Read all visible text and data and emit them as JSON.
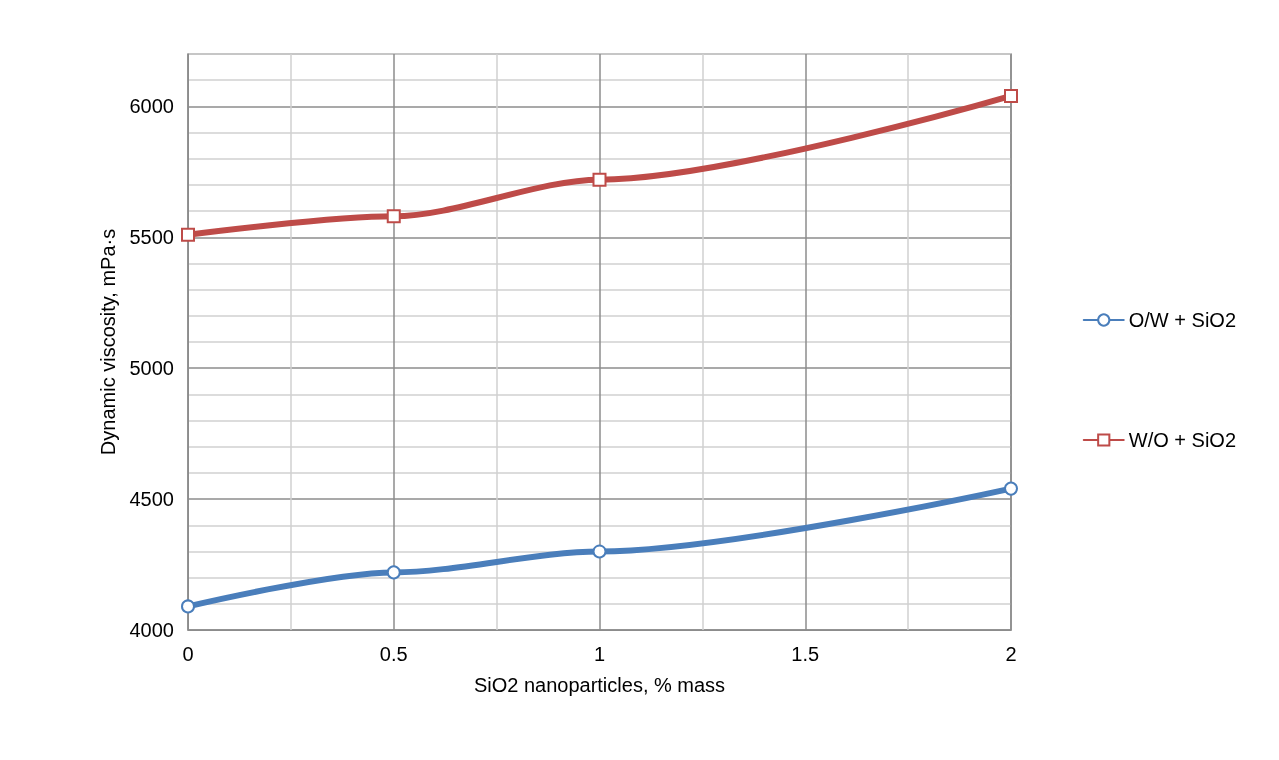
{
  "chart_data": {
    "type": "line",
    "xlabel": "SiO2 nanoparticles, % mass",
    "ylabel": "Dynamic viscosity, mPa·s",
    "x": [
      0,
      0.5,
      1,
      2
    ],
    "series": [
      {
        "name": "O/W + SiO2",
        "color": "#4a7ebb",
        "marker": "circle",
        "values": [
          4090,
          4220,
          4300,
          4540
        ]
      },
      {
        "name": "W/O + SiO2",
        "color": "#be4b48",
        "marker": "square",
        "values": [
          5510,
          5580,
          5720,
          6040
        ]
      }
    ],
    "xlim": [
      0,
      2
    ],
    "xticks": [
      0,
      {
        "value": 0.25,
        "label": null
      },
      0.5,
      {
        "value": 0.75,
        "label": null
      },
      1,
      {
        "value": 1.25,
        "label": null
      },
      1.5,
      {
        "value": 1.75,
        "label": null
      },
      2
    ],
    "ylim": [
      4000,
      6200
    ],
    "yticks": [
      4000,
      {
        "value": 4100,
        "label": null
      },
      {
        "value": 4200,
        "label": null
      },
      {
        "value": 4300,
        "label": null
      },
      {
        "value": 4400,
        "label": null
      },
      4500,
      {
        "value": 4600,
        "label": null
      },
      {
        "value": 4700,
        "label": null
      },
      {
        "value": 4800,
        "label": null
      },
      {
        "value": 4900,
        "label": null
      },
      5000,
      {
        "value": 5100,
        "label": null
      },
      {
        "value": 5200,
        "label": null
      },
      {
        "value": 5300,
        "label": null
      },
      {
        "value": 5400,
        "label": null
      },
      5500,
      {
        "value": 5600,
        "label": null
      },
      {
        "value": 5700,
        "label": null
      },
      {
        "value": 5800,
        "label": null
      },
      {
        "value": 5900,
        "label": null
      },
      6000,
      {
        "value": 6100,
        "label": null
      },
      {
        "value": 6200,
        "label": null
      }
    ],
    "grid": true,
    "legend": "right",
    "line_style": "solid"
  }
}
